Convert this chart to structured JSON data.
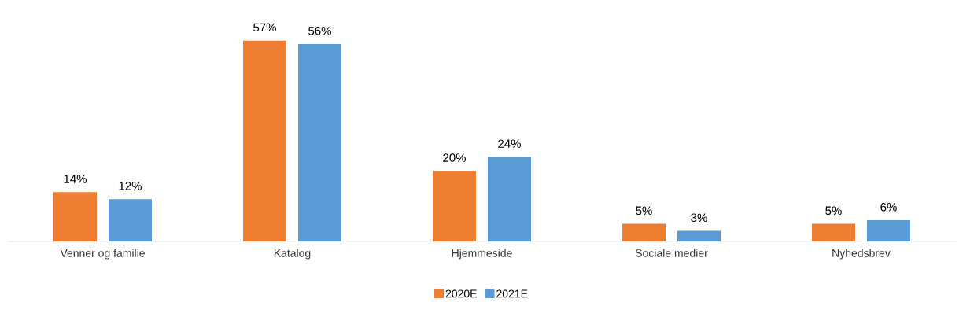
{
  "chart_data": {
    "type": "bar",
    "categories": [
      "Venner og familie",
      "Katalog",
      "Hjemmeside",
      "Sociale medier",
      "Nyhedsbrev"
    ],
    "series": [
      {
        "name": "2020E",
        "color": "#ed7d31",
        "values": [
          14,
          57,
          20,
          5,
          5
        ],
        "value_labels": [
          "14%",
          "57%",
          "20%",
          "5%",
          "5%"
        ]
      },
      {
        "name": "2021E",
        "color": "#5b9bd5",
        "values": [
          12,
          56,
          24,
          3,
          6
        ],
        "value_labels": [
          "12%",
          "56%",
          "24%",
          "3%",
          "6%"
        ]
      }
    ],
    "legend": "bottom"
  }
}
